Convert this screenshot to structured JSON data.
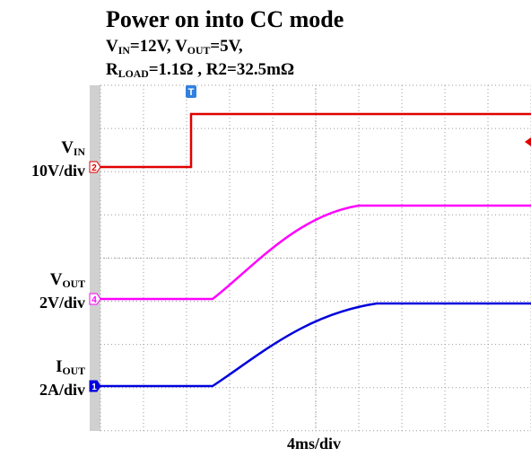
{
  "header": {
    "title": "Power on into CC mode",
    "conditions": [
      [
        {
          "text": "V"
        },
        {
          "text": "IN",
          "sub": true
        },
        {
          "text": "=12V,   V"
        },
        {
          "text": "OUT",
          "sub": true
        },
        {
          "text": "=5V,"
        }
      ],
      [
        {
          "text": "R"
        },
        {
          "text": "LOAD",
          "sub": true
        },
        {
          "text": "=1.1Ω , R2=32.5mΩ"
        }
      ]
    ]
  },
  "channels": [
    {
      "name": [
        {
          "text": "V"
        },
        {
          "text": "IN",
          "sub": true
        }
      ],
      "scale": "10V/div",
      "marker": "2"
    },
    {
      "name": [
        {
          "text": "V"
        },
        {
          "text": "OUT",
          "sub": true
        }
      ],
      "scale": "2V/div",
      "marker": "4"
    },
    {
      "name": [
        {
          "text": "I"
        },
        {
          "text": "OUT",
          "sub": true
        }
      ],
      "scale": "2A/div",
      "marker": "1"
    }
  ],
  "trigger_marker": "T",
  "timebase": "4ms/div"
}
